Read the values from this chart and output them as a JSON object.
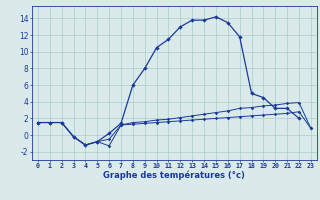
{
  "x_hours": [
    0,
    1,
    2,
    3,
    4,
    5,
    6,
    7,
    8,
    9,
    10,
    11,
    12,
    13,
    14,
    15,
    16,
    17,
    18,
    19,
    20,
    21,
    22,
    23
  ],
  "line1": [
    1.5,
    1.5,
    1.5,
    -0.2,
    -1.2,
    -0.8,
    0.2,
    1.4,
    6.0,
    8.0,
    10.5,
    11.5,
    13.0,
    13.8,
    13.8,
    14.2,
    13.5,
    11.8,
    5.0,
    4.5,
    3.2,
    3.2,
    2.0,
    null
  ],
  "line2": [
    1.5,
    1.5,
    1.5,
    -0.2,
    -1.2,
    -0.8,
    -1.3,
    1.2,
    1.5,
    1.6,
    1.8,
    1.9,
    2.1,
    2.3,
    2.5,
    2.7,
    2.9,
    3.2,
    3.3,
    3.5,
    3.6,
    3.8,
    3.9,
    0.8
  ],
  "line3": [
    1.5,
    1.5,
    1.5,
    -0.2,
    -1.2,
    -0.8,
    -0.5,
    1.2,
    1.3,
    1.4,
    1.5,
    1.6,
    1.7,
    1.8,
    1.9,
    2.0,
    2.1,
    2.2,
    2.3,
    2.4,
    2.5,
    2.6,
    2.8,
    0.8
  ],
  "bg_color": "#daeaea",
  "grid_color": "#aacccc",
  "line_color": "#1a3a9a",
  "xlabel": "Graphe des températures (°c)",
  "xlim": [
    -0.5,
    23.5
  ],
  "ylim": [
    -3,
    15.5
  ],
  "yticks": [
    -2,
    0,
    2,
    4,
    6,
    8,
    10,
    12,
    14
  ],
  "xticks": [
    0,
    1,
    2,
    3,
    4,
    5,
    6,
    7,
    8,
    9,
    10,
    11,
    12,
    13,
    14,
    15,
    16,
    17,
    18,
    19,
    20,
    21,
    22,
    23
  ],
  "xlabel_fontsize": 6.0,
  "xtick_fontsize": 4.8,
  "ytick_fontsize": 5.5
}
